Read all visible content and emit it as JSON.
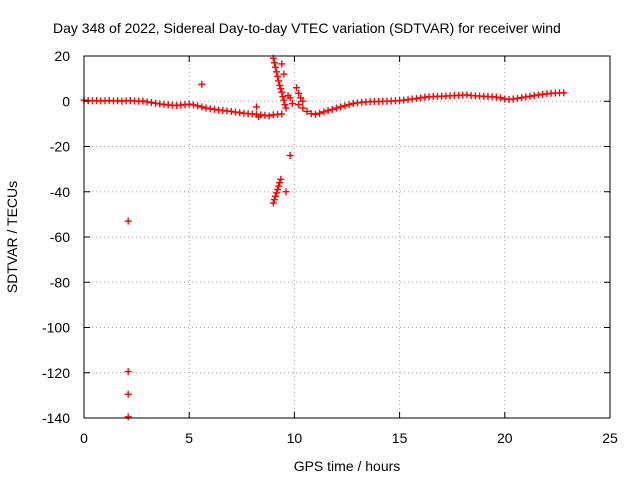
{
  "chart_data": {
    "type": "scatter",
    "title": "Day 348 of 2022, Sidereal Day-to-day VTEC variation (SDTVAR) for receiver wind",
    "xlabel": "GPS time / hours",
    "ylabel": "SDTVAR / TECUs",
    "xlim": [
      0,
      25
    ],
    "ylim": [
      -140,
      20
    ],
    "xticks": [
      0,
      5,
      10,
      15,
      20,
      25
    ],
    "yticks": [
      -140,
      -120,
      -100,
      -80,
      -60,
      -40,
      -20,
      0,
      20
    ],
    "grid": true,
    "marker": "+",
    "color": "#ff0000",
    "series": [
      {
        "name": "SDTVAR",
        "points": [
          [
            0.0,
            0.5
          ],
          [
            0.2,
            0.3
          ],
          [
            0.4,
            0.2
          ],
          [
            0.6,
            0.3
          ],
          [
            0.8,
            0.1
          ],
          [
            1.0,
            0.2
          ],
          [
            1.2,
            0.3
          ],
          [
            1.4,
            0.1
          ],
          [
            1.6,
            0.2
          ],
          [
            1.8,
            0.0
          ],
          [
            2.0,
            0.2
          ],
          [
            2.2,
            0.3
          ],
          [
            2.4,
            0.1
          ],
          [
            2.6,
            0.0
          ],
          [
            2.8,
            0.1
          ],
          [
            3.0,
            -0.3
          ],
          [
            3.2,
            -0.6
          ],
          [
            3.4,
            -0.9
          ],
          [
            3.6,
            -1.2
          ],
          [
            3.8,
            -1.4
          ],
          [
            4.0,
            -1.6
          ],
          [
            4.2,
            -1.8
          ],
          [
            4.4,
            -1.9
          ],
          [
            4.6,
            -1.7
          ],
          [
            4.8,
            -1.5
          ],
          [
            5.0,
            -1.3
          ],
          [
            5.2,
            -1.6
          ],
          [
            5.4,
            -2.0
          ],
          [
            5.6,
            -2.5
          ],
          [
            5.8,
            -3.0
          ],
          [
            6.0,
            -3.3
          ],
          [
            6.2,
            -3.6
          ],
          [
            6.4,
            -3.9
          ],
          [
            6.6,
            -4.1
          ],
          [
            6.8,
            -4.3
          ],
          [
            7.0,
            -4.5
          ],
          [
            7.2,
            -4.8
          ],
          [
            7.4,
            -5.0
          ],
          [
            7.6,
            -5.3
          ],
          [
            7.8,
            -5.5
          ],
          [
            8.0,
            -5.6
          ],
          [
            8.2,
            -5.9
          ],
          [
            8.4,
            -6.0
          ],
          [
            8.6,
            -6.2
          ],
          [
            8.8,
            -6.5
          ],
          [
            9.0,
            -6.0
          ],
          [
            9.2,
            -5.8
          ],
          [
            9.4,
            -5.6
          ],
          [
            10.2,
            -1.5
          ],
          [
            10.4,
            -3.0
          ],
          [
            10.6,
            -4.5
          ],
          [
            10.8,
            -5.5
          ],
          [
            11.0,
            -5.8
          ],
          [
            11.2,
            -5.3
          ],
          [
            11.4,
            -4.7
          ],
          [
            11.6,
            -4.1
          ],
          [
            11.8,
            -3.6
          ],
          [
            12.0,
            -3.0
          ],
          [
            12.2,
            -2.5
          ],
          [
            12.4,
            -2.0
          ],
          [
            12.6,
            -1.5
          ],
          [
            12.8,
            -1.0
          ],
          [
            13.0,
            -0.7
          ],
          [
            13.2,
            -0.5
          ],
          [
            13.4,
            -0.3
          ],
          [
            13.6,
            -0.2
          ],
          [
            13.8,
            -0.1
          ],
          [
            14.0,
            -0.1
          ],
          [
            14.2,
            0.0
          ],
          [
            14.4,
            0.0
          ],
          [
            14.6,
            0.1
          ],
          [
            14.8,
            0.2
          ],
          [
            15.0,
            0.3
          ],
          [
            15.2,
            0.5
          ],
          [
            15.4,
            0.7
          ],
          [
            15.6,
            1.0
          ],
          [
            15.8,
            1.2
          ],
          [
            16.0,
            1.5
          ],
          [
            16.2,
            1.8
          ],
          [
            16.4,
            2.0
          ],
          [
            16.6,
            2.1
          ],
          [
            16.8,
            2.2
          ],
          [
            17.0,
            2.2
          ],
          [
            17.2,
            2.3
          ],
          [
            17.4,
            2.4
          ],
          [
            17.6,
            2.5
          ],
          [
            17.8,
            2.6
          ],
          [
            18.0,
            2.7
          ],
          [
            18.2,
            2.8
          ],
          [
            18.4,
            2.5
          ],
          [
            18.6,
            2.4
          ],
          [
            18.8,
            2.3
          ],
          [
            19.0,
            2.2
          ],
          [
            19.2,
            2.1
          ],
          [
            19.4,
            2.0
          ],
          [
            19.6,
            1.8
          ],
          [
            19.8,
            1.5
          ],
          [
            20.0,
            1.0
          ],
          [
            20.2,
            0.8
          ],
          [
            20.4,
            1.0
          ],
          [
            20.6,
            1.3
          ],
          [
            20.8,
            1.6
          ],
          [
            21.0,
            1.9
          ],
          [
            21.2,
            2.2
          ],
          [
            21.4,
            2.5
          ],
          [
            21.6,
            2.8
          ],
          [
            21.8,
            3.1
          ],
          [
            22.0,
            3.3
          ],
          [
            22.2,
            3.5
          ],
          [
            22.4,
            3.6
          ],
          [
            22.6,
            3.7
          ],
          [
            22.8,
            3.7
          ],
          [
            2.1,
            -53.0
          ],
          [
            2.1,
            -119.5
          ],
          [
            2.1,
            -129.5
          ],
          [
            2.1,
            -139.5
          ],
          [
            5.6,
            7.5
          ],
          [
            8.2,
            -2.5
          ],
          [
            8.3,
            -6.8
          ],
          [
            9.0,
            19.0
          ],
          [
            9.05,
            17.0
          ],
          [
            9.1,
            15.0
          ],
          [
            9.15,
            13.0
          ],
          [
            9.2,
            11.0
          ],
          [
            9.25,
            9.0
          ],
          [
            9.3,
            7.0
          ],
          [
            9.35,
            5.5
          ],
          [
            9.4,
            4.0
          ],
          [
            9.45,
            2.0
          ],
          [
            9.5,
            0.5
          ],
          [
            9.55,
            -1.5
          ],
          [
            9.6,
            -3.0
          ],
          [
            9.4,
            16.5
          ],
          [
            9.5,
            12.0
          ],
          [
            9.7,
            2.5
          ],
          [
            9.8,
            1.5
          ],
          [
            9.9,
            -1.0
          ],
          [
            9.8,
            -24.0
          ],
          [
            9.6,
            -40.0
          ],
          [
            9.0,
            -45.0
          ],
          [
            9.05,
            -43.5
          ],
          [
            9.1,
            -42.0
          ],
          [
            9.15,
            -40.5
          ],
          [
            9.2,
            -39.0
          ],
          [
            9.25,
            -37.5
          ],
          [
            9.3,
            -36.0
          ],
          [
            9.35,
            -34.5
          ],
          [
            10.1,
            6.0
          ],
          [
            10.2,
            3.5
          ],
          [
            10.3,
            1.5
          ],
          [
            10.4,
            0.0
          ]
        ]
      }
    ]
  }
}
